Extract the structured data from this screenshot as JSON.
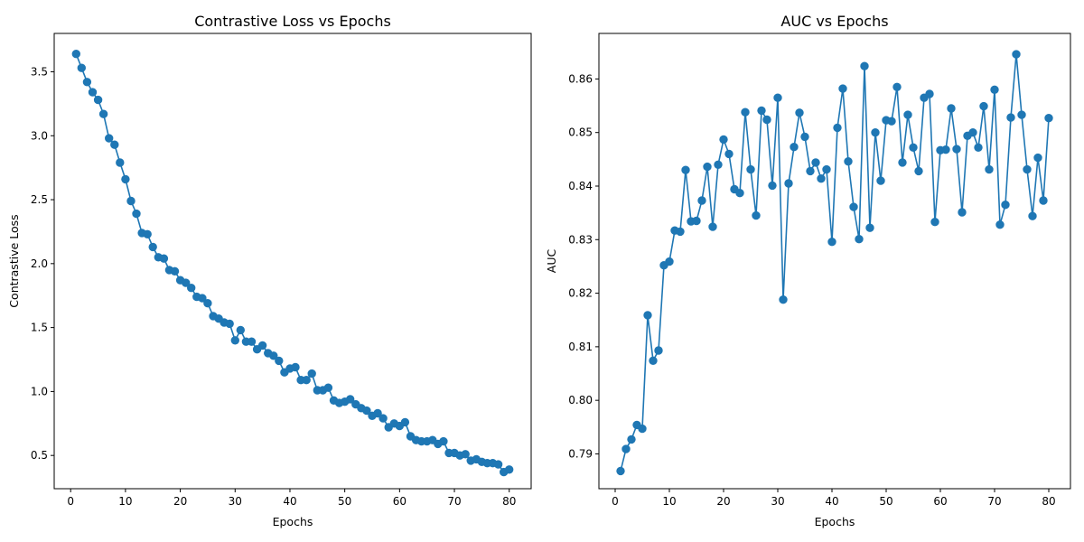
{
  "chart_data": [
    {
      "type": "line",
      "title": "Contrastive Loss vs Epochs",
      "xlabel": "Epochs",
      "ylabel": "Contrastive Loss",
      "xlim": [
        -3,
        84
      ],
      "ylim": [
        0.24,
        3.8
      ],
      "xticks": [
        0,
        10,
        20,
        30,
        40,
        50,
        60,
        70,
        80
      ],
      "yticks": [
        0.5,
        1.0,
        1.5,
        2.0,
        2.5,
        3.0,
        3.5
      ],
      "ytick_labels": [
        "0.5",
        "1.0",
        "1.5",
        "2.0",
        "2.5",
        "3.0",
        "3.5"
      ],
      "grid": false,
      "color": "#1f77b4",
      "series": [
        {
          "x": [
            1,
            2,
            3,
            4,
            5,
            6,
            7,
            8,
            9,
            10,
            11,
            12,
            13,
            14,
            15,
            16,
            17,
            18,
            19,
            20,
            21,
            22,
            23,
            24,
            25,
            26,
            27,
            28,
            29,
            30,
            31,
            32,
            33,
            34,
            35,
            36,
            37,
            38,
            39,
            40,
            41,
            42,
            43,
            44,
            45,
            46,
            47,
            48,
            49,
            50,
            51,
            52,
            53,
            54,
            55,
            56,
            57,
            58,
            59,
            60,
            61,
            62,
            63,
            64,
            65,
            66,
            67,
            68,
            69,
            70,
            71,
            72,
            73,
            74,
            75,
            76,
            77,
            78,
            79,
            80
          ],
          "values": [
            3.64,
            3.53,
            3.42,
            3.34,
            3.28,
            3.17,
            2.98,
            2.93,
            2.79,
            2.66,
            2.49,
            2.39,
            2.24,
            2.23,
            2.13,
            2.05,
            2.04,
            1.95,
            1.94,
            1.87,
            1.85,
            1.81,
            1.74,
            1.73,
            1.69,
            1.59,
            1.57,
            1.54,
            1.53,
            1.4,
            1.48,
            1.39,
            1.39,
            1.33,
            1.36,
            1.3,
            1.28,
            1.24,
            1.15,
            1.18,
            1.19,
            1.09,
            1.09,
            1.14,
            1.01,
            1.01,
            1.03,
            0.93,
            0.91,
            0.92,
            0.94,
            0.9,
            0.87,
            0.85,
            0.81,
            0.83,
            0.79,
            0.72,
            0.75,
            0.73,
            0.76,
            0.65,
            0.62,
            0.61,
            0.61,
            0.62,
            0.59,
            0.61,
            0.52,
            0.52,
            0.5,
            0.51,
            0.46,
            0.47,
            0.45,
            0.44,
            0.44,
            0.43,
            0.37,
            0.39
          ]
        }
      ]
    },
    {
      "type": "line",
      "title": "AUC vs Epochs",
      "xlabel": "Epochs",
      "ylabel": "AUC",
      "xlim": [
        -3,
        84
      ],
      "ylim": [
        0.7835,
        0.8685
      ],
      "xticks": [
        0,
        10,
        20,
        30,
        40,
        50,
        60,
        70,
        80
      ],
      "yticks": [
        0.79,
        0.8,
        0.81,
        0.82,
        0.83,
        0.84,
        0.85,
        0.86
      ],
      "ytick_labels": [
        "0.79",
        "0.80",
        "0.81",
        "0.82",
        "0.83",
        "0.84",
        "0.85",
        "0.86"
      ],
      "grid": false,
      "color": "#1f77b4",
      "series": [
        {
          "x": [
            1,
            2,
            3,
            4,
            5,
            6,
            7,
            8,
            9,
            10,
            11,
            12,
            13,
            14,
            15,
            16,
            17,
            18,
            19,
            20,
            21,
            22,
            23,
            24,
            25,
            26,
            27,
            28,
            29,
            30,
            31,
            32,
            33,
            34,
            35,
            36,
            37,
            38,
            39,
            40,
            41,
            42,
            43,
            44,
            45,
            46,
            47,
            48,
            49,
            50,
            51,
            52,
            53,
            54,
            55,
            56,
            57,
            58,
            59,
            60,
            61,
            62,
            63,
            64,
            65,
            66,
            67,
            68,
            69,
            70,
            71,
            72,
            73,
            74,
            75,
            76,
            77,
            78,
            79,
            80
          ],
          "values": [
            0.7868,
            0.7909,
            0.7927,
            0.7954,
            0.7947,
            0.8159,
            0.8074,
            0.8093,
            0.8252,
            0.8259,
            0.8317,
            0.8315,
            0.843,
            0.8334,
            0.8335,
            0.8373,
            0.8436,
            0.8324,
            0.844,
            0.8487,
            0.846,
            0.8394,
            0.8387,
            0.8538,
            0.8431,
            0.8345,
            0.8541,
            0.8524,
            0.8401,
            0.8565,
            0.8188,
            0.8405,
            0.8473,
            0.8537,
            0.8492,
            0.8428,
            0.8444,
            0.8414,
            0.8431,
            0.8296,
            0.8509,
            0.8582,
            0.8446,
            0.8361,
            0.8301,
            0.8624,
            0.8322,
            0.85,
            0.841,
            0.8523,
            0.8521,
            0.8585,
            0.8444,
            0.8533,
            0.8472,
            0.8428,
            0.8565,
            0.8572,
            0.8333,
            0.8467,
            0.8468,
            0.8545,
            0.8469,
            0.8351,
            0.8494,
            0.85,
            0.8472,
            0.8549,
            0.8431,
            0.858,
            0.8328,
            0.8365,
            0.8528,
            0.8646,
            0.8533,
            0.8431,
            0.8344,
            0.8453,
            0.8373,
            0.8527
          ]
        }
      ]
    }
  ]
}
